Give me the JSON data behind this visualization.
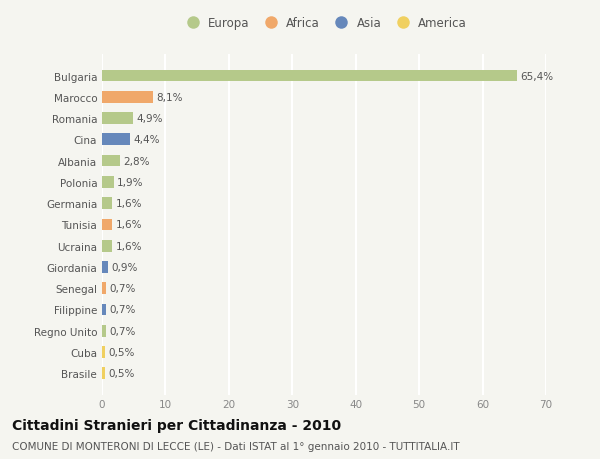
{
  "countries": [
    "Bulgaria",
    "Marocco",
    "Romania",
    "Cina",
    "Albania",
    "Polonia",
    "Germania",
    "Tunisia",
    "Ucraina",
    "Giordania",
    "Senegal",
    "Filippine",
    "Regno Unito",
    "Cuba",
    "Brasile"
  ],
  "values": [
    65.4,
    8.1,
    4.9,
    4.4,
    2.8,
    1.9,
    1.6,
    1.6,
    1.6,
    0.9,
    0.7,
    0.7,
    0.7,
    0.5,
    0.5
  ],
  "labels": [
    "65,4%",
    "8,1%",
    "4,9%",
    "4,4%",
    "2,8%",
    "1,9%",
    "1,6%",
    "1,6%",
    "1,6%",
    "0,9%",
    "0,7%",
    "0,7%",
    "0,7%",
    "0,5%",
    "0,5%"
  ],
  "continents": [
    "Europa",
    "Africa",
    "Europa",
    "Asia",
    "Europa",
    "Europa",
    "Europa",
    "Africa",
    "Europa",
    "Asia",
    "Africa",
    "Asia",
    "Europa",
    "America",
    "America"
  ],
  "continent_colors": {
    "Europa": "#b5c98a",
    "Africa": "#f0a86a",
    "Asia": "#6688bb",
    "America": "#f0d060"
  },
  "xlim": [
    0,
    70
  ],
  "xticks": [
    0,
    10,
    20,
    30,
    40,
    50,
    60,
    70
  ],
  "title": "Cittadini Stranieri per Cittadinanza - 2010",
  "subtitle": "COMUNE DI MONTERONI DI LECCE (LE) - Dati ISTAT al 1° gennaio 2010 - TUTTITALIA.IT",
  "background_color": "#f5f5f0",
  "grid_color": "#ffffff",
  "bar_height": 0.55,
  "title_fontsize": 10,
  "subtitle_fontsize": 7.5,
  "label_fontsize": 7.5,
  "tick_fontsize": 7.5,
  "legend_fontsize": 8.5
}
